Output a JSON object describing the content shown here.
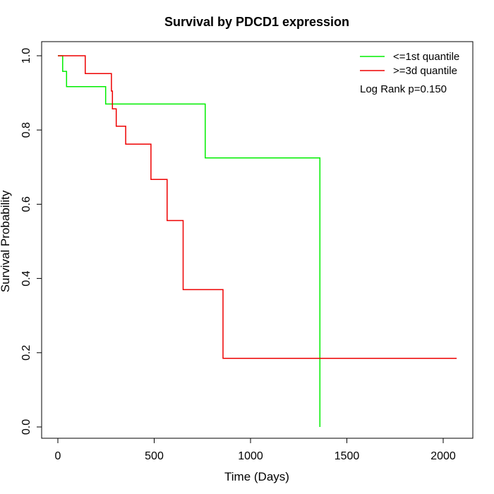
{
  "chart_data": {
    "type": "line",
    "title": "Survival by PDCD1 expression",
    "xlabel": "Time (Days)",
    "ylabel": "Survival Probability",
    "xlim": [
      0,
      2070
    ],
    "ylim": [
      0,
      1
    ],
    "xticks": [
      0,
      500,
      1000,
      1500,
      2000
    ],
    "yticks": [
      0.0,
      0.2,
      0.4,
      0.6,
      0.8,
      1.0
    ],
    "ytick_labels": [
      "0.0",
      "0.2",
      "0.4",
      "0.6",
      "0.8",
      "1.0"
    ],
    "grid": false,
    "legend_position": "top-right",
    "annotation": "Log Rank p=0.150",
    "series": [
      {
        "name": "<=1st quantile",
        "color": "#00ee00",
        "step_points": [
          [
            0,
            1.0
          ],
          [
            25,
            1.0
          ],
          [
            25,
            0.958
          ],
          [
            45,
            0.958
          ],
          [
            45,
            0.917
          ],
          [
            248,
            0.917
          ],
          [
            248,
            0.87
          ],
          [
            765,
            0.87
          ],
          [
            765,
            0.725
          ],
          [
            1360,
            0.725
          ],
          [
            1360,
            0.0
          ]
        ]
      },
      {
        "name": ">=3d quantile",
        "color": "#ee0000",
        "step_points": [
          [
            0,
            1.0
          ],
          [
            142,
            1.0
          ],
          [
            142,
            0.952
          ],
          [
            278,
            0.952
          ],
          [
            278,
            0.905
          ],
          [
            283,
            0.905
          ],
          [
            283,
            0.857
          ],
          [
            303,
            0.857
          ],
          [
            303,
            0.81
          ],
          [
            352,
            0.81
          ],
          [
            352,
            0.762
          ],
          [
            483,
            0.762
          ],
          [
            483,
            0.667
          ],
          [
            567,
            0.667
          ],
          [
            567,
            0.556
          ],
          [
            650,
            0.556
          ],
          [
            650,
            0.37
          ],
          [
            857,
            0.37
          ],
          [
            857,
            0.185
          ],
          [
            2070,
            0.185
          ]
        ]
      }
    ]
  }
}
